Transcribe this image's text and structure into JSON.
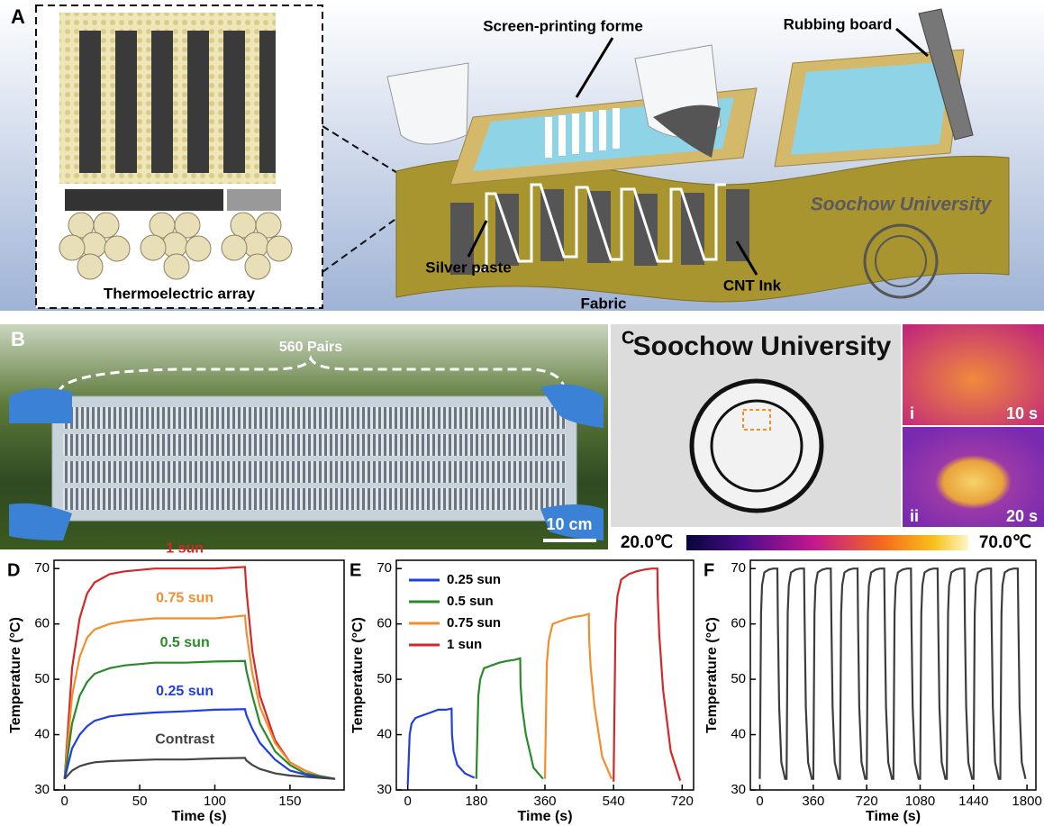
{
  "panels": {
    "a": {
      "label": "A",
      "screen_printing_forme": "Screen-printing forme",
      "rubbing_board": "Rubbing board",
      "silver_paste": "Silver paste",
      "cnt_ink": "CNT Ink",
      "fabric": "Fabric",
      "fabric_logo": "Soochow University",
      "array": "Thermoelectric array"
    },
    "b": {
      "label": "B",
      "pairs": "560 Pairs",
      "scale_bar": "10 cm"
    },
    "c": {
      "label": "C",
      "logo": "Soochow University",
      "image_i": "i",
      "time_i": "10 s",
      "image_ii": "ii",
      "time_ii": "20 s",
      "colorbar_min": "20.0℃",
      "colorbar_max": "70.0℃"
    }
  },
  "chart_data": [
    {
      "type": "line",
      "label": "D",
      "xlabel": "Time (s)",
      "ylabel": "Temperature (°C)",
      "x": [
        0,
        5,
        10,
        15,
        20,
        30,
        40,
        60,
        80,
        100,
        120,
        121,
        125,
        130,
        140,
        150,
        160,
        170,
        180
      ],
      "xlim": [
        -7,
        186
      ],
      "xticks": [
        0,
        50,
        100,
        150
      ],
      "ylim": [
        30,
        71.5
      ],
      "yticks": [
        30,
        40,
        50,
        60,
        70
      ],
      "series": [
        {
          "name": "1 sun",
          "color": "#d62728",
          "values": [
            32,
            52,
            61,
            65.5,
            67.5,
            69,
            69.5,
            70,
            70,
            70,
            70.3,
            66,
            55,
            47,
            39,
            35,
            33.5,
            32.5,
            32
          ]
        },
        {
          "name": "0.75 sun",
          "color": "#f28e2b",
          "values": [
            32,
            47,
            54,
            57.5,
            59,
            60,
            60.5,
            61,
            61,
            61,
            61.5,
            58.5,
            51,
            45,
            38.5,
            35,
            33.5,
            32.5,
            32
          ]
        },
        {
          "name": "0.5 sun",
          "color": "#2a8a2a",
          "values": [
            32,
            42,
            47,
            49.5,
            51,
            52,
            52.5,
            53,
            53,
            53.2,
            53.3,
            51.5,
            47,
            42,
            37,
            34.5,
            33,
            32.5,
            32
          ]
        },
        {
          "name": "0.25 sun",
          "color": "#1f3fe0",
          "values": [
            32,
            37.5,
            40,
            41.5,
            42.5,
            43.3,
            43.6,
            44,
            44.2,
            44.5,
            44.6,
            43.5,
            41,
            38.5,
            35.5,
            33.5,
            32.8,
            32.3,
            32
          ]
        },
        {
          "name": "Contrast",
          "color": "#444444",
          "values": [
            32,
            33.5,
            34.3,
            34.7,
            35,
            35.2,
            35.3,
            35.5,
            35.5,
            35.7,
            35.8,
            35.3,
            34.5,
            33.8,
            33,
            32.6,
            32.4,
            32.2,
            32
          ]
        }
      ]
    },
    {
      "type": "line",
      "label": "E",
      "xlabel": "Time (s)",
      "ylabel": "Temperature (°C)",
      "legend": "upper left",
      "xlim": [
        -30,
        750
      ],
      "xticks": [
        0,
        180,
        360,
        540,
        720
      ],
      "ylim": [
        30,
        71.5
      ],
      "yticks": [
        30,
        40,
        50,
        60,
        70
      ],
      "series": [
        {
          "name": "0.25 sun",
          "color": "#1f3fe0",
          "x": [
            0,
            5,
            10,
            20,
            40,
            60,
            80,
            100,
            115,
            116,
            120,
            130,
            150,
            175
          ],
          "values": [
            31,
            40,
            42,
            43,
            43.5,
            44,
            44.5,
            44.5,
            44.7,
            40,
            37,
            34.5,
            33,
            32.2
          ]
        },
        {
          "name": "0.5 sun",
          "color": "#2a8a2a",
          "x": [
            180,
            185,
            190,
            200,
            220,
            240,
            260,
            280,
            295,
            296,
            300,
            310,
            330,
            355
          ],
          "values": [
            32,
            47,
            50,
            52,
            52.5,
            53,
            53.3,
            53.5,
            53.8,
            49,
            45,
            40,
            34,
            32
          ]
        },
        {
          "name": "0.75 sun",
          "color": "#f28e2b",
          "x": [
            360,
            365,
            370,
            380,
            400,
            420,
            440,
            460,
            475,
            476,
            480,
            490,
            510,
            535
          ],
          "values": [
            32,
            53,
            57,
            60,
            60.5,
            61,
            61.3,
            61.5,
            61.8,
            57,
            52,
            45,
            36,
            32
          ]
        },
        {
          "name": "1 sun",
          "color": "#d62728",
          "x": [
            540,
            545,
            550,
            560,
            580,
            600,
            620,
            640,
            655,
            656,
            660,
            670,
            690,
            715
          ],
          "values": [
            31.5,
            60,
            65,
            68,
            69,
            69.5,
            69.8,
            70,
            70,
            65,
            58,
            48,
            37,
            31.7
          ]
        }
      ]
    },
    {
      "type": "line",
      "label": "F",
      "xlabel": "Time (s)",
      "ylabel": "Temperature (°C)",
      "xlim": [
        -64,
        1860
      ],
      "xticks": [
        0,
        360,
        720,
        1080,
        1440,
        1800
      ],
      "ylim": [
        30,
        71.5
      ],
      "yticks": [
        30,
        40,
        50,
        60,
        70
      ],
      "series": [
        {
          "color": "#3d3d3d",
          "x": [
            0,
            8,
            15,
            30,
            60,
            90,
            118,
            122,
            130,
            145,
            170,
            180,
            188,
            195,
            210,
            240,
            270,
            298,
            302,
            310,
            325,
            350,
            360,
            368,
            375,
            390,
            420,
            450,
            478,
            482,
            490,
            505,
            530,
            540,
            548,
            555,
            570,
            600,
            630,
            658,
            662,
            670,
            685,
            710,
            720,
            728,
            735,
            750,
            780,
            810,
            838,
            842,
            850,
            865,
            890,
            900,
            908,
            915,
            930,
            960,
            990,
            1018,
            1022,
            1030,
            1045,
            1070,
            1080,
            1088,
            1095,
            1110,
            1140,
            1170,
            1198,
            1202,
            1210,
            1225,
            1250,
            1260,
            1268,
            1275,
            1290,
            1320,
            1350,
            1378,
            1382,
            1390,
            1405,
            1430,
            1440,
            1448,
            1455,
            1470,
            1500,
            1530,
            1558,
            1562,
            1570,
            1585,
            1610,
            1620,
            1628,
            1635,
            1650,
            1680,
            1710,
            1738,
            1742,
            1750,
            1765,
            1790
          ],
          "values": [
            32,
            62,
            67,
            69.3,
            69.8,
            70,
            70,
            60,
            45,
            35,
            32,
            32,
            62,
            67,
            69.3,
            69.8,
            70,
            70,
            60,
            45,
            35,
            32,
            32,
            62,
            67,
            69.3,
            69.8,
            70,
            70,
            60,
            45,
            35,
            32,
            32,
            62,
            67,
            69.3,
            69.8,
            70,
            70,
            60,
            45,
            35,
            32,
            32,
            62,
            67,
            69.3,
            69.8,
            70,
            70,
            60,
            45,
            35,
            32,
            32,
            62,
            67,
            69.3,
            69.8,
            70,
            70,
            60,
            45,
            35,
            32,
            32,
            62,
            67,
            69.3,
            69.8,
            70,
            70,
            60,
            45,
            35,
            32,
            32,
            62,
            67,
            69.3,
            69.8,
            70,
            70,
            60,
            45,
            35,
            32,
            32,
            62,
            67,
            69.3,
            69.8,
            70,
            70,
            60,
            45,
            35,
            32,
            32,
            62,
            67,
            69.3,
            69.8,
            70,
            70,
            60,
            45,
            35,
            32
          ]
        }
      ]
    }
  ]
}
